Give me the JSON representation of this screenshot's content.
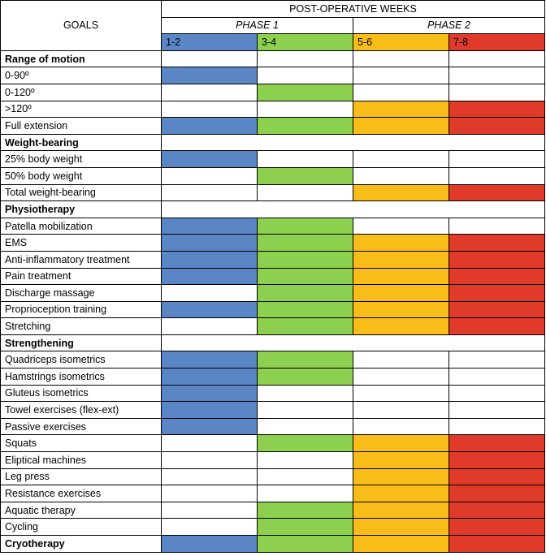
{
  "header": {
    "goals_label": "GOALS",
    "weeks_label": "POST-OPERATIVE WEEKS",
    "phase1_label": "PHASE 1",
    "phase2_label": "PHASE 2"
  },
  "colors": {
    "blue": "#5b86c6",
    "green": "#8dcf4f",
    "orange": "#f9bd1a",
    "red": "#e03a2b",
    "white": "#ffffff"
  },
  "weeks": [
    {
      "label": "1-2",
      "color": "blue"
    },
    {
      "label": "3-4",
      "color": "green"
    },
    {
      "label": "5-6",
      "color": "orange"
    },
    {
      "label": "7-8",
      "color": "red"
    }
  ],
  "rows": [
    {
      "goal": "Range of motion",
      "section": true,
      "cells": [
        0,
        0,
        0,
        0
      ]
    },
    {
      "goal": "0-90º",
      "cells": [
        1,
        0,
        0,
        0
      ]
    },
    {
      "goal": "0-120º",
      "cells": [
        0,
        1,
        0,
        0
      ]
    },
    {
      "goal": ">120º",
      "cells": [
        0,
        0,
        1,
        1
      ]
    },
    {
      "goal": "Full extension",
      "cells": [
        1,
        1,
        1,
        1
      ]
    },
    {
      "goal": "Weight-bearing",
      "section": true,
      "merged": true
    },
    {
      "goal": "25% body weight",
      "cells": [
        1,
        0,
        0,
        0
      ]
    },
    {
      "goal": "50% body weight",
      "cells": [
        0,
        1,
        0,
        0
      ]
    },
    {
      "goal": "Total weight-bearing",
      "cells": [
        0,
        0,
        1,
        1
      ]
    },
    {
      "goal": "Physiotherapy",
      "section": true,
      "merged": true
    },
    {
      "goal": "Patella mobilization",
      "cells": [
        1,
        1,
        0,
        0
      ]
    },
    {
      "goal": "EMS",
      "cells": [
        1,
        1,
        1,
        1
      ]
    },
    {
      "goal": "Anti-inflammatory treatment",
      "cells": [
        1,
        1,
        1,
        1
      ]
    },
    {
      "goal": "Pain treatment",
      "cells": [
        1,
        1,
        1,
        1
      ]
    },
    {
      "goal": "Discharge massage",
      "cells": [
        0,
        1,
        1,
        1
      ]
    },
    {
      "goal": "Proprioception training",
      "cells": [
        1,
        1,
        1,
        1
      ]
    },
    {
      "goal": "Stretching",
      "cells": [
        0,
        1,
        1,
        1
      ]
    },
    {
      "goal": "Strengthening",
      "section": true,
      "merged": true
    },
    {
      "goal": "Quadriceps isometrics",
      "cells": [
        1,
        1,
        0,
        0
      ]
    },
    {
      "goal": "Hamstrings isometrics",
      "cells": [
        1,
        1,
        0,
        0
      ]
    },
    {
      "goal": "Gluteus isometrics",
      "cells": [
        1,
        0,
        0,
        0
      ]
    },
    {
      "goal": "Towel exercises (flex-ext)",
      "cells": [
        1,
        0,
        0,
        0
      ]
    },
    {
      "goal": "Passive exercises",
      "cells": [
        1,
        0,
        0,
        0
      ]
    },
    {
      "goal": "Squats",
      "cells": [
        0,
        1,
        1,
        1
      ]
    },
    {
      "goal": "Eliptical machines",
      "cells": [
        0,
        0,
        1,
        1
      ]
    },
    {
      "goal": "Leg press",
      "cells": [
        0,
        0,
        1,
        1
      ]
    },
    {
      "goal": "Resistance exercises",
      "cells": [
        0,
        0,
        1,
        1
      ]
    },
    {
      "goal": "Aquatic therapy",
      "cells": [
        0,
        1,
        1,
        1
      ]
    },
    {
      "goal": "Cycling",
      "cells": [
        0,
        1,
        1,
        1
      ]
    },
    {
      "goal": "Cryotherapy",
      "section": true,
      "cells": [
        1,
        1,
        1,
        1
      ]
    }
  ]
}
